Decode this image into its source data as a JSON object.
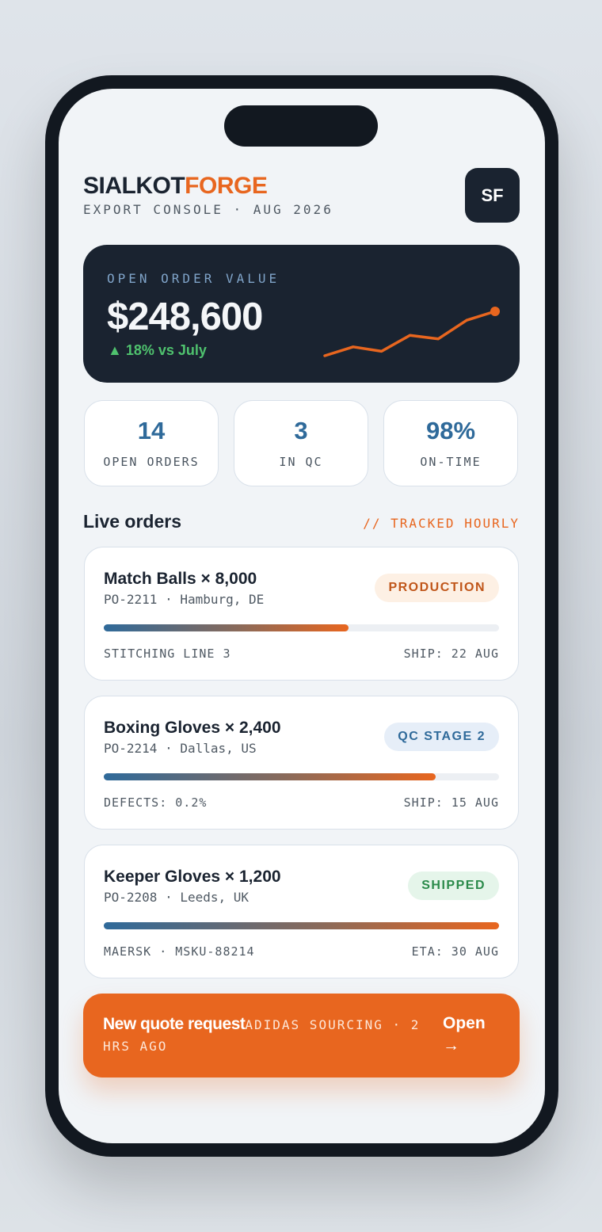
{
  "header": {
    "brand_a": "SIALKOT",
    "brand_b": "FORGE",
    "subtitle": "EXPORT CONSOLE · AUG 2026",
    "avatar": "SF"
  },
  "hero": {
    "label": "OPEN ORDER VALUE",
    "value": "$248,600",
    "delta": "▲ 18% vs July",
    "sparkline": [
      10,
      20,
      15,
      33,
      29,
      50,
      60
    ]
  },
  "stats": [
    {
      "value": "14",
      "label": "OPEN ORDERS"
    },
    {
      "value": "3",
      "label": "IN QC"
    },
    {
      "value": "98%",
      "label": "ON-TIME"
    }
  ],
  "section": {
    "title": "Live orders",
    "note": "// TRACKED HOURLY"
  },
  "orders": [
    {
      "title": "Match Balls × 8,000",
      "sub": "PO-2211 · Hamburg, DE",
      "badge": "PRODUCTION",
      "progress": 62,
      "left": "STITCHING LINE 3",
      "right": "SHIP: 22 AUG"
    },
    {
      "title": "Boxing Gloves × 2,400",
      "sub": "PO-2214 · Dallas, US",
      "badge": "QC STAGE 2",
      "progress": 84,
      "left": "DEFECTS: 0.2%",
      "right": "SHIP: 15 AUG"
    },
    {
      "title": "Keeper Gloves × 1,200",
      "sub": "PO-2208 · Leeds, UK",
      "badge": "SHIPPED",
      "progress": 100,
      "left": "MAERSK · MSKU-88214",
      "right": "ETA: 30 AUG"
    }
  ],
  "banner": {
    "title": "New quote request",
    "detail": "ADIDAS SOURCING · 2 HRS AGO",
    "action": "Open →"
  }
}
